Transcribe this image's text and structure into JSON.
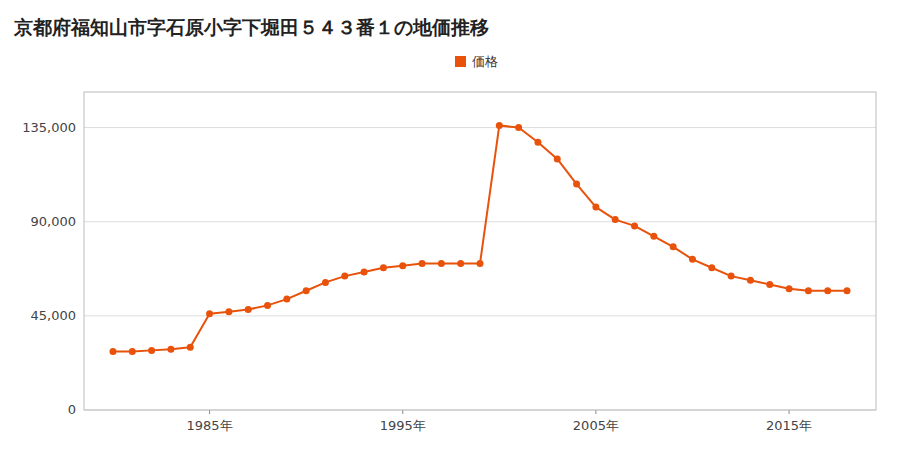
{
  "chart_data": {
    "type": "line",
    "title": "京都府福知山市字石原小字下堀田５４３番１の地価推移",
    "x": [
      1980,
      1981,
      1982,
      1983,
      1984,
      1985,
      1986,
      1987,
      1988,
      1989,
      1990,
      1991,
      1992,
      1993,
      1994,
      1995,
      1996,
      1997,
      1998,
      1999,
      2000,
      2001,
      2002,
      2003,
      2004,
      2005,
      2006,
      2007,
      2008,
      2009,
      2010,
      2011,
      2012,
      2013,
      2014,
      2015,
      2016,
      2017,
      2018
    ],
    "series": [
      {
        "name": "価格",
        "color": "#e8520a",
        "marker": "circle",
        "values": [
          28000,
          28000,
          28500,
          29000,
          30000,
          46000,
          47000,
          48000,
          50000,
          53000,
          57000,
          61000,
          64000,
          66000,
          68000,
          69000,
          70000,
          70000,
          70000,
          70000,
          136000,
          135000,
          128000,
          120000,
          108000,
          97000,
          91000,
          88000,
          83000,
          78000,
          72000,
          68000,
          64000,
          62000,
          60000,
          58000,
          57000,
          57000,
          57000
        ]
      }
    ],
    "xlim": [
      1978.5,
      2019.5
    ],
    "xticks": [
      {
        "value": 1985,
        "label": "1985年"
      },
      {
        "value": 1995,
        "label": "1995年"
      },
      {
        "value": 2005,
        "label": "2005年"
      },
      {
        "value": 2015,
        "label": "2015年"
      }
    ],
    "ylim": [
      0,
      152000
    ],
    "yticks": [
      0,
      {
        "value": 45000,
        "label": "45,000"
      },
      {
        "value": 90000,
        "label": "90,000"
      },
      {
        "value": 135000,
        "label": "135,000"
      }
    ],
    "grid": true,
    "legend": "top"
  }
}
